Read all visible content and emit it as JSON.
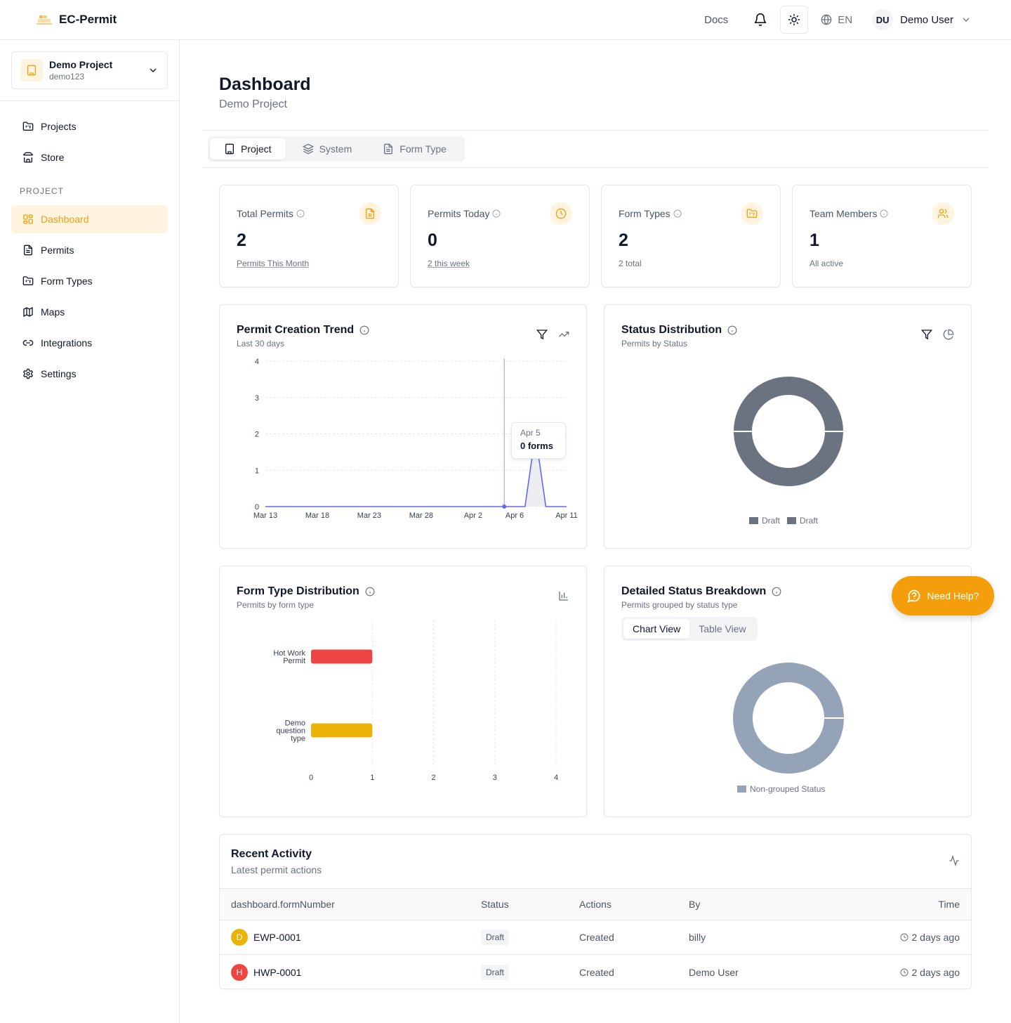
{
  "app": {
    "name": "EC-Permit"
  },
  "topbar": {
    "docs": "Docs",
    "language": "EN",
    "user_initials": "DU",
    "user_name": "Demo User"
  },
  "sidebar": {
    "project_name": "Demo Project",
    "project_code": "demo123",
    "items_top": [
      {
        "label": "Projects",
        "icon": "folder-icon"
      },
      {
        "label": "Store",
        "icon": "store-icon"
      }
    ],
    "section_label": "PROJECT",
    "items": [
      {
        "label": "Dashboard",
        "icon": "dashboard-icon",
        "active": true
      },
      {
        "label": "Permits",
        "icon": "file-text-icon"
      },
      {
        "label": "Form Types",
        "icon": "folder-icon"
      },
      {
        "label": "Maps",
        "icon": "map-icon"
      },
      {
        "label": "Integrations",
        "icon": "link-icon"
      },
      {
        "label": "Settings",
        "icon": "settings-icon"
      }
    ]
  },
  "page": {
    "title": "Dashboard",
    "subtitle": "Demo Project"
  },
  "tabs": [
    {
      "label": "Project",
      "active": true
    },
    {
      "label": "System"
    },
    {
      "label": "Form Type"
    }
  ],
  "stats": [
    {
      "label": "Total Permits",
      "value": "2",
      "foot": "Permits This Month",
      "icon": "file-text-icon"
    },
    {
      "label": "Permits Today",
      "value": "0",
      "foot": "2 this week",
      "icon": "clock-icon"
    },
    {
      "label": "Form Types",
      "value": "2",
      "foot": "2 total",
      "icon": "folder-icon"
    },
    {
      "label": "Team Members",
      "value": "1",
      "foot": "All active",
      "icon": "users-icon"
    }
  ],
  "trend": {
    "title": "Permit Creation Trend",
    "subtitle": "Last 30 days",
    "tooltip_date": "Apr 5",
    "tooltip_value": "0 forms"
  },
  "status_dist": {
    "title": "Status Distribution",
    "subtitle": "Permits by Status"
  },
  "form_type_dist": {
    "title": "Form Type Distribution",
    "subtitle": "Permits by form type"
  },
  "detailed": {
    "title": "Detailed Status Breakdown",
    "subtitle": "Permits grouped by status type",
    "chart_view": "Chart View",
    "table_view": "Table View"
  },
  "help_button": "Need Help?",
  "activity": {
    "title": "Recent Activity",
    "subtitle": "Latest permit actions",
    "columns": [
      "dashboard.formNumber",
      "Status",
      "Actions",
      "By",
      "Time"
    ],
    "rows": [
      {
        "initial": "D",
        "badge_color": "#eab308",
        "form": "EWP-0001",
        "status": "Draft",
        "action": "Created",
        "by": "billy",
        "time": "2 days ago"
      },
      {
        "initial": "H",
        "badge_color": "#ef4444",
        "form": "HWP-0001",
        "status": "Draft",
        "action": "Created",
        "by": "Demo User",
        "time": "2 days ago"
      }
    ]
  },
  "colors": {
    "accent": "#f59e0b",
    "line": "#6366f1",
    "draft": "#6b7280",
    "non_grouped": "#94a3b8",
    "hot_work": "#ef4444",
    "demo_question": "#eab308"
  },
  "chart_data": [
    {
      "type": "line",
      "x_ticks": [
        "Mar 13",
        "Mar 18",
        "Mar 23",
        "Mar 28",
        "Apr 2",
        "Apr 6",
        "Apr 11"
      ],
      "y_ticks": [
        "0",
        "1",
        "2",
        "3",
        "4"
      ],
      "ylim": [
        0,
        4
      ],
      "x": [
        "Mar 13",
        "Mar 14",
        "Mar 15",
        "Mar 16",
        "Mar 17",
        "Mar 18",
        "Mar 19",
        "Mar 20",
        "Mar 21",
        "Mar 22",
        "Mar 23",
        "Mar 24",
        "Mar 25",
        "Mar 26",
        "Mar 27",
        "Mar 28",
        "Mar 29",
        "Mar 30",
        "Mar 31",
        "Apr 1",
        "Apr 2",
        "Apr 3",
        "Apr 4",
        "Apr 5",
        "Apr 6",
        "Apr 7",
        "Apr 8",
        "Apr 9",
        "Apr 10",
        "Apr 11"
      ],
      "values": [
        0,
        0,
        0,
        0,
        0,
        0,
        0,
        0,
        0,
        0,
        0,
        0,
        0,
        0,
        0,
        0,
        0,
        0,
        0,
        0,
        0,
        0,
        0,
        0,
        0,
        0,
        2,
        0,
        0,
        0
      ],
      "highlight_index": 23
    },
    {
      "type": "pie",
      "legend": [
        "Draft",
        "Draft"
      ],
      "values": [
        1,
        1
      ],
      "colors": [
        "#6b7280",
        "#6b7280"
      ]
    },
    {
      "type": "bar",
      "orientation": "horizontal",
      "categories": [
        "Hot Work Permit",
        "Demo question type"
      ],
      "category_lines": [
        [
          "Hot Work",
          "Permit"
        ],
        [
          "Demo",
          "question",
          "type"
        ]
      ],
      "values": [
        1,
        1
      ],
      "colors": [
        "#ef4444",
        "#eab308"
      ],
      "x_ticks": [
        "0",
        "1",
        "2",
        "3",
        "4"
      ],
      "xlim": [
        0,
        4
      ]
    },
    {
      "type": "pie",
      "legend": [
        "Non-grouped Status"
      ],
      "values": [
        2
      ],
      "colors": [
        "#94a3b8"
      ]
    }
  ]
}
